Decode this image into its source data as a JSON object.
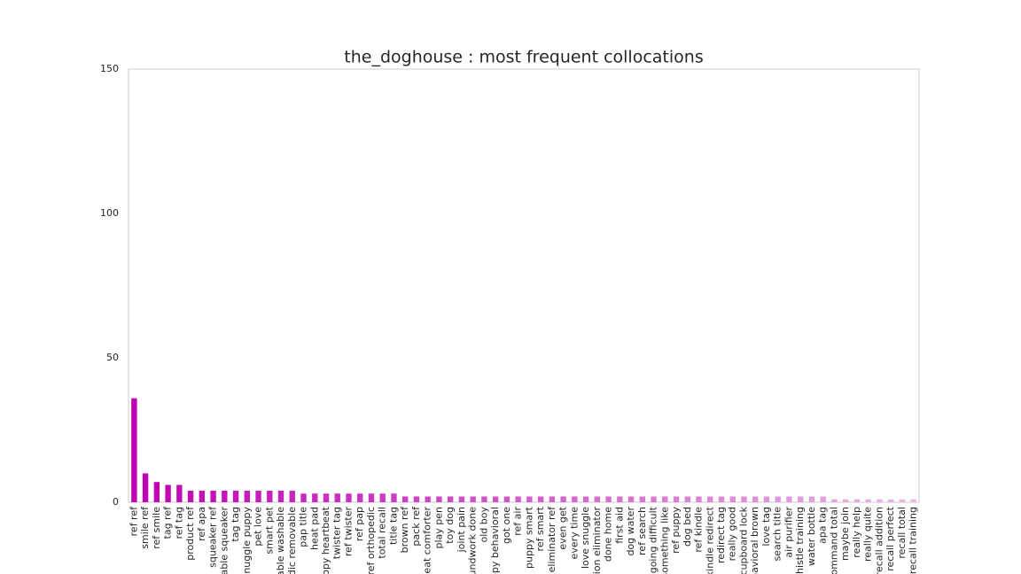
{
  "chart_data": {
    "type": "bar",
    "title": "the_doghouse : most frequent collocations",
    "categories": [
      "ref ref",
      "smile ref",
      "ref smile",
      "tag ref",
      "ref tag",
      "product ref",
      "ref apa",
      "squeaker ref",
      "able squeaker",
      "tag tag",
      "snuggle puppy",
      "pet love",
      "smart pet",
      "able washable",
      "dic removable",
      "pap title",
      "heat pad",
      "uppy heartbeat",
      "twister tag",
      "ref twister",
      "ref pap",
      "ref orthopedic",
      "total recall",
      "title tag",
      "brown ref",
      "pack ref",
      "beat comforter",
      "play pen",
      "toy dog",
      "joint pain",
      "undwork done",
      "old boy",
      "ppy behavioral",
      "got one",
      "ref air",
      "puppy smart",
      "ref smart",
      "eliminator ref",
      "even get",
      "every time",
      "love snuggle",
      "tion eliminator",
      "done home",
      "first aid",
      "dog water",
      "ref search",
      "going difficult",
      "something like",
      "ref puppy",
      "dog bed",
      "ref kindle",
      "kindle redirect",
      "redirect tag",
      "really good",
      "cupboard lock",
      "havioral brown",
      "love tag",
      "search title",
      "air purifier",
      "whistle training",
      "water bottle",
      "apa tag",
      "command total",
      "maybe join",
      "really help",
      "really quite",
      "recall addition",
      "recall perfect",
      "recall total",
      "recall training"
    ],
    "values": [
      36,
      10,
      7,
      6,
      6,
      4,
      4,
      4,
      4,
      4,
      4,
      4,
      4,
      4,
      4,
      3,
      3,
      3,
      3,
      3,
      3,
      3,
      3,
      3,
      2,
      2,
      2,
      2,
      2,
      2,
      2,
      2,
      2,
      2,
      2,
      2,
      2,
      2,
      2,
      2,
      2,
      2,
      2,
      2,
      2,
      2,
      2,
      2,
      2,
      2,
      2,
      2,
      2,
      2,
      2,
      2,
      2,
      2,
      2,
      2,
      2,
      2,
      1,
      1,
      1,
      1,
      1,
      1,
      1,
      1
    ],
    "color_range": [
      "#c000b4",
      "#e8b6e2"
    ],
    "ylim": [
      0,
      150
    ],
    "yticks": [
      0,
      50,
      100,
      150
    ],
    "grid": false
  }
}
